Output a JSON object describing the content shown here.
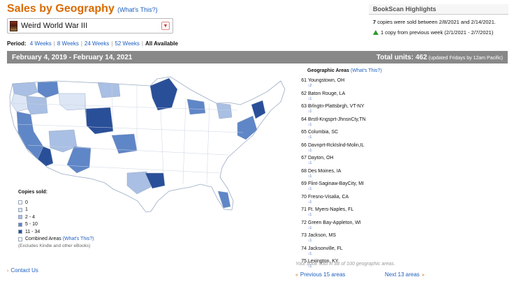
{
  "header": {
    "title": "Sales by Geography",
    "whats_this": "(What's This?)"
  },
  "book_select": {
    "value": "Weird World War III",
    "arrow": "▼"
  },
  "period": {
    "label": "Period:",
    "options": [
      "4 Weeks",
      "8 Weeks",
      "24 Weeks",
      "52 Weeks"
    ],
    "current": "All Available"
  },
  "highlights": {
    "title": "BookScan Highlights",
    "copies": "7",
    "copies_text": "copies were sold between 2/8/2021 and 2/14/2021.",
    "change": "1 copy from previous week (2/1/2021 - 2/7/2021)"
  },
  "date_bar": {
    "range": "February 4, 2019 - February 14, 2021",
    "total_label": "Total units: 462",
    "total_note": "(updated Fridays by 12am Pacific)"
  },
  "legend": {
    "title": "Copies sold:",
    "items": [
      {
        "label": "0",
        "color": "#ffffff"
      },
      {
        "label": "1",
        "color": "#dce6f5"
      },
      {
        "label": "2 - 4",
        "color": "#a9bfe3"
      },
      {
        "label": "5 - 10",
        "color": "#5f86c7"
      },
      {
        "label": "11 - 34",
        "color": "#2a4f99"
      }
    ],
    "combined_label": "Combined Areas",
    "combined_link": "(What's This?)",
    "exclusion_note": "(Excludes Kindle and other eBooks)"
  },
  "contact": "Contact Us",
  "areas": {
    "title": "Geographic Areas",
    "whats_this": "(What's This?)",
    "rows": [
      {
        "rank": "61",
        "name": "Youngstown, OH",
        "count": "2"
      },
      {
        "rank": "62",
        "name": "Baton Rouge, LA",
        "count": "1"
      },
      {
        "rank": "63",
        "name": "Brlngtn-Plattsbrgh, VT-NY",
        "count": "1"
      },
      {
        "rank": "64",
        "name": "Brstl-Kngsprt-JhnsnCty,TN",
        "count": "1"
      },
      {
        "rank": "65",
        "name": "Columbia, SC",
        "count": "1"
      },
      {
        "rank": "66",
        "name": "Davnprt-RckIslnd-Molin,IL",
        "count": "1"
      },
      {
        "rank": "67",
        "name": "Dayton, OH",
        "count": "1"
      },
      {
        "rank": "68",
        "name": "Des Moines, IA",
        "count": "1"
      },
      {
        "rank": "69",
        "name": "Flint-Saginaw-BayCity, MI",
        "count": "1"
      },
      {
        "rank": "70",
        "name": "Fresno-Visalia, CA",
        "count": "1"
      },
      {
        "rank": "71",
        "name": "Ft. Myers-Naples, FL",
        "count": "1"
      },
      {
        "rank": "72",
        "name": "Green Bay-Appleton, WI",
        "count": "1"
      },
      {
        "rank": "73",
        "name": "Jackson, MS",
        "count": "1"
      },
      {
        "rank": "74",
        "name": "Jacksonville, FL",
        "count": "1"
      },
      {
        "rank": "75",
        "name": "Lexington, KY",
        "count": "1"
      }
    ],
    "coverage": "Your book sold in 88 of 100 geographic areas.",
    "prev": "Previous 15 areas",
    "next": "Next 13 areas"
  },
  "map": {
    "outline_color": "#9aaac4",
    "regions": [
      {
        "name": "map-region-1",
        "level": 2
      },
      {
        "name": "map-region-2",
        "level": 3
      },
      {
        "name": "map-region-3",
        "level": 1
      },
      {
        "name": "map-region-4",
        "level": 2
      },
      {
        "name": "map-region-5",
        "level": 3
      },
      {
        "name": "map-region-6",
        "level": 4
      },
      {
        "name": "map-region-7",
        "level": 4
      },
      {
        "name": "map-region-8",
        "level": 1
      },
      {
        "name": "map-region-9",
        "level": 2
      },
      {
        "name": "map-region-10",
        "level": 3
      },
      {
        "name": "map-region-11",
        "level": 2
      },
      {
        "name": "map-region-12",
        "level": 4
      },
      {
        "name": "map-region-13",
        "level": 3
      },
      {
        "name": "map-region-14",
        "level": 2
      },
      {
        "name": "map-region-15",
        "level": 4
      },
      {
        "name": "map-region-16",
        "level": 3
      },
      {
        "name": "map-region-17",
        "level": 2
      },
      {
        "name": "map-region-18",
        "level": 3
      },
      {
        "name": "map-region-19",
        "level": 4
      },
      {
        "name": "map-region-20",
        "level": 3
      }
    ]
  }
}
